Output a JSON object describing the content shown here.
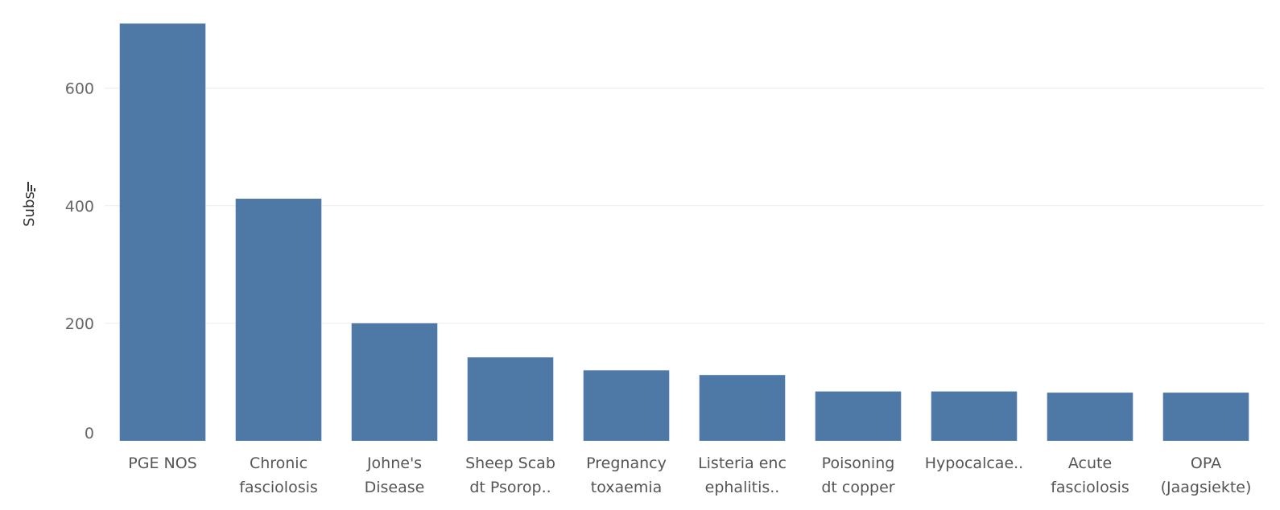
{
  "chart_data": {
    "type": "bar",
    "title": "",
    "xlabel": "",
    "ylabel": "Subs",
    "ylim": [
      0,
      720
    ],
    "yticks": [
      0,
      200,
      400,
      600
    ],
    "grid": true,
    "bar_color": "#4e79a7",
    "sort_icon": "sort-descending-icon",
    "categories": [
      [
        "PGE NOS"
      ],
      [
        "Chronic",
        "fasciolosis"
      ],
      [
        "Johne's",
        "Disease"
      ],
      [
        "Sheep Scab",
        "dt Psorop.."
      ],
      [
        "Pregnancy",
        "toxaemia"
      ],
      [
        "Listeria enc",
        "ephalitis.."
      ],
      [
        "Poisoning",
        "dt copper"
      ],
      [
        "Hypocalcae.."
      ],
      [
        "Acute",
        "fasciolosis"
      ],
      [
        "OPA",
        "(Jaagsiekte)"
      ]
    ],
    "values": [
      710,
      412,
      200,
      142,
      120,
      112,
      84,
      84,
      82,
      82
    ]
  }
}
